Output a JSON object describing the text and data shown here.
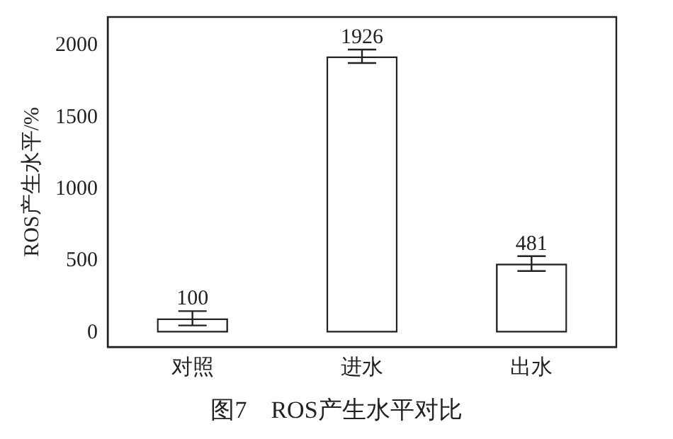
{
  "chart_data": {
    "type": "bar",
    "ylabel": "ROS产生水平/%",
    "categories": [
      "对照",
      "进水",
      "出水"
    ],
    "values": [
      100,
      1926,
      481
    ],
    "errors": [
      50,
      47,
      52
    ],
    "color": "#222222",
    "ylim": [
      -100,
      2200
    ],
    "yticks": [
      0,
      500,
      1000,
      1500,
      2000
    ],
    "data_labels": true,
    "grid": false,
    "legend": false,
    "annotations": [
      "图7　ROS产生水平对比"
    ]
  }
}
